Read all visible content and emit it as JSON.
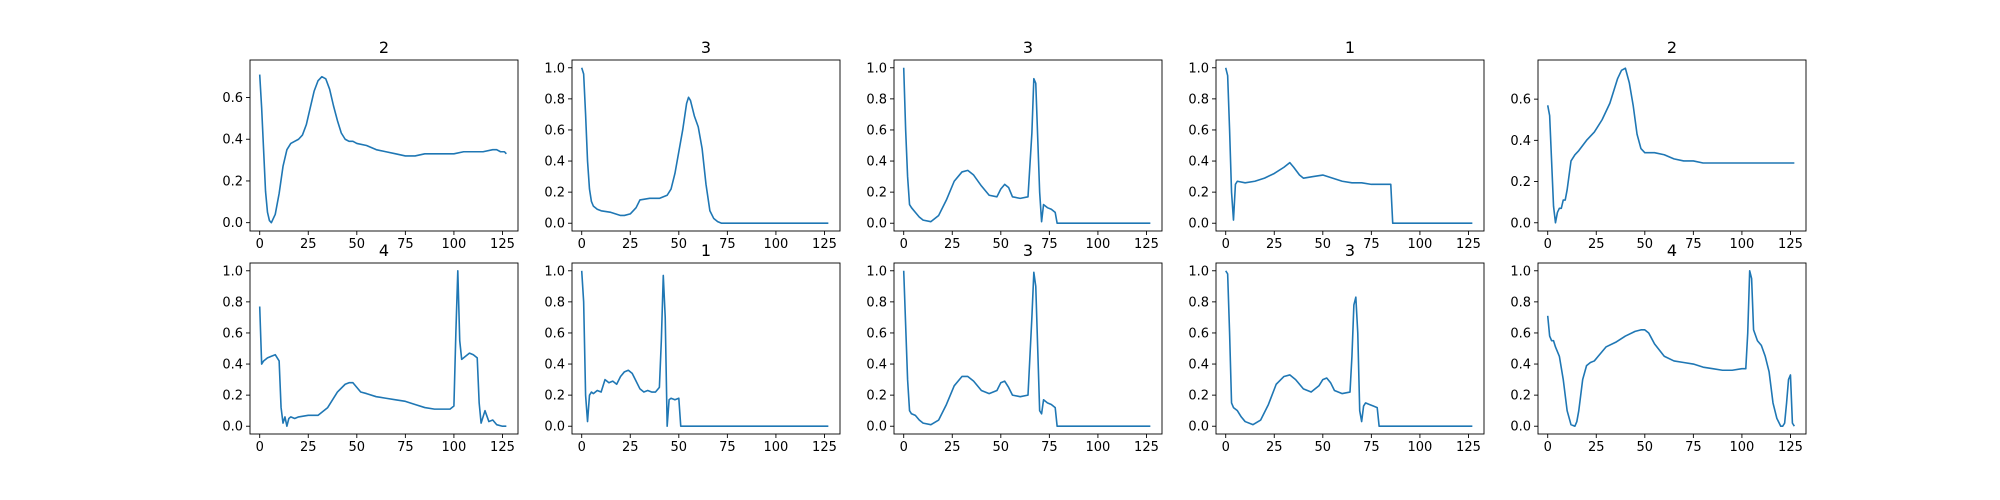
{
  "figure": {
    "background": "#ffffff",
    "line_color": "#1f77b4",
    "axis_color": "#000000"
  },
  "chart_data": [
    {
      "type": "line",
      "title": "2",
      "xlim": [
        -5,
        133
      ],
      "ylim": [
        -0.04,
        0.78
      ],
      "xticks": [
        0,
        25,
        50,
        75,
        100,
        125
      ],
      "yticks": [
        0.0,
        0.2,
        0.4,
        0.6
      ],
      "series": [
        {
          "x": [
            0,
            1,
            2,
            3,
            4,
            5,
            6,
            8,
            10,
            12,
            14,
            16,
            18,
            20,
            22,
            24,
            26,
            28,
            30,
            32,
            34,
            36,
            38,
            40,
            42,
            44,
            46,
            48,
            50,
            55,
            60,
            65,
            70,
            75,
            80,
            85,
            90,
            95,
            100,
            105,
            110,
            115,
            120,
            122,
            124,
            126,
            127
          ],
          "y": [
            0.71,
            0.55,
            0.35,
            0.15,
            0.05,
            0.01,
            0.0,
            0.04,
            0.14,
            0.27,
            0.35,
            0.38,
            0.39,
            0.4,
            0.42,
            0.47,
            0.55,
            0.63,
            0.68,
            0.7,
            0.69,
            0.64,
            0.56,
            0.49,
            0.43,
            0.4,
            0.39,
            0.39,
            0.38,
            0.37,
            0.35,
            0.34,
            0.33,
            0.32,
            0.32,
            0.33,
            0.33,
            0.33,
            0.33,
            0.34,
            0.34,
            0.34,
            0.35,
            0.35,
            0.34,
            0.34,
            0.33
          ]
        }
      ]
    },
    {
      "type": "line",
      "title": "3",
      "xlim": [
        -5,
        133
      ],
      "ylim": [
        -0.05,
        1.05
      ],
      "xticks": [
        0,
        25,
        50,
        75,
        100,
        125
      ],
      "yticks": [
        0.0,
        0.2,
        0.4,
        0.6,
        0.8,
        1.0
      ],
      "series": [
        {
          "x": [
            0,
            1,
            2,
            3,
            4,
            5,
            6,
            8,
            10,
            15,
            20,
            22,
            25,
            28,
            30,
            35,
            40,
            44,
            46,
            48,
            50,
            52,
            54,
            55,
            56,
            58,
            60,
            62,
            64,
            66,
            68,
            70,
            72,
            75,
            80,
            90,
            100,
            110,
            120,
            127
          ],
          "y": [
            1.0,
            0.96,
            0.7,
            0.4,
            0.22,
            0.14,
            0.11,
            0.09,
            0.08,
            0.07,
            0.05,
            0.05,
            0.06,
            0.1,
            0.15,
            0.16,
            0.16,
            0.18,
            0.22,
            0.32,
            0.46,
            0.6,
            0.77,
            0.81,
            0.79,
            0.69,
            0.62,
            0.48,
            0.25,
            0.08,
            0.03,
            0.01,
            0.0,
            0.0,
            0.0,
            0.0,
            0.0,
            0.0,
            0.0,
            0.0
          ]
        }
      ]
    },
    {
      "type": "line",
      "title": "3",
      "xlim": [
        -5,
        133
      ],
      "ylim": [
        -0.05,
        1.05
      ],
      "xticks": [
        0,
        25,
        50,
        75,
        100,
        125
      ],
      "yticks": [
        0.0,
        0.2,
        0.4,
        0.6,
        0.8,
        1.0
      ],
      "series": [
        {
          "x": [
            0,
            1,
            2,
            3,
            4,
            6,
            8,
            10,
            14,
            18,
            22,
            26,
            30,
            33,
            36,
            40,
            44,
            48,
            50,
            52,
            54,
            56,
            60,
            64,
            66,
            67,
            68,
            69,
            70,
            71,
            72,
            74,
            76,
            78,
            79,
            80,
            90,
            100,
            110,
            120,
            127
          ],
          "y": [
            1.0,
            0.6,
            0.3,
            0.12,
            0.1,
            0.07,
            0.04,
            0.02,
            0.01,
            0.05,
            0.15,
            0.27,
            0.33,
            0.34,
            0.31,
            0.24,
            0.18,
            0.17,
            0.22,
            0.25,
            0.23,
            0.17,
            0.16,
            0.17,
            0.58,
            0.93,
            0.9,
            0.55,
            0.2,
            0.01,
            0.12,
            0.1,
            0.09,
            0.07,
            0.0,
            0.0,
            0.0,
            0.0,
            0.0,
            0.0,
            0.0
          ]
        }
      ]
    },
    {
      "type": "line",
      "title": "1",
      "xlim": [
        -5,
        133
      ],
      "ylim": [
        -0.05,
        1.05
      ],
      "xticks": [
        0,
        25,
        50,
        75,
        100,
        125
      ],
      "yticks": [
        0.0,
        0.2,
        0.4,
        0.6,
        0.8,
        1.0
      ],
      "series": [
        {
          "x": [
            0,
            1,
            2,
            3,
            4,
            5,
            6,
            10,
            15,
            20,
            25,
            30,
            33,
            35,
            38,
            40,
            45,
            50,
            55,
            60,
            65,
            70,
            75,
            80,
            85,
            86,
            90,
            100,
            110,
            120,
            127
          ],
          "y": [
            1.0,
            0.95,
            0.6,
            0.2,
            0.02,
            0.25,
            0.27,
            0.26,
            0.27,
            0.29,
            0.32,
            0.36,
            0.39,
            0.36,
            0.31,
            0.29,
            0.3,
            0.31,
            0.29,
            0.27,
            0.26,
            0.26,
            0.25,
            0.25,
            0.25,
            0.0,
            0.0,
            0.0,
            0.0,
            0.0,
            0.0
          ]
        }
      ]
    },
    {
      "type": "line",
      "title": "2",
      "xlim": [
        -5,
        133
      ],
      "ylim": [
        -0.04,
        0.79
      ],
      "xticks": [
        0,
        25,
        50,
        75,
        100,
        125
      ],
      "yticks": [
        0.0,
        0.2,
        0.4,
        0.6
      ],
      "series": [
        {
          "x": [
            0,
            1,
            2,
            3,
            4,
            5,
            6,
            7,
            8,
            9,
            10,
            12,
            14,
            16,
            20,
            24,
            28,
            32,
            34,
            36,
            38,
            40,
            42,
            44,
            46,
            48,
            50,
            55,
            60,
            65,
            70,
            75,
            80,
            85,
            90,
            95,
            100,
            105,
            110,
            115,
            120,
            125,
            127
          ],
          "y": [
            0.57,
            0.52,
            0.3,
            0.08,
            0.0,
            0.05,
            0.07,
            0.07,
            0.11,
            0.11,
            0.16,
            0.3,
            0.33,
            0.35,
            0.4,
            0.44,
            0.5,
            0.58,
            0.64,
            0.7,
            0.74,
            0.75,
            0.68,
            0.57,
            0.43,
            0.36,
            0.34,
            0.34,
            0.33,
            0.31,
            0.3,
            0.3,
            0.29,
            0.29,
            0.29,
            0.29,
            0.29,
            0.29,
            0.29,
            0.29,
            0.29,
            0.29,
            0.29
          ]
        }
      ]
    },
    {
      "type": "line",
      "title": "4",
      "xlim": [
        -5,
        133
      ],
      "ylim": [
        -0.05,
        1.05
      ],
      "xticks": [
        0,
        25,
        50,
        75,
        100,
        125
      ],
      "yticks": [
        0.0,
        0.2,
        0.4,
        0.6,
        0.8,
        1.0
      ],
      "series": [
        {
          "x": [
            0,
            1,
            2,
            4,
            6,
            8,
            10,
            11,
            12,
            13,
            14,
            15,
            16,
            18,
            20,
            25,
            30,
            35,
            40,
            44,
            46,
            48,
            50,
            52,
            55,
            60,
            65,
            70,
            75,
            80,
            85,
            90,
            95,
            98,
            100,
            101,
            102,
            103,
            104,
            106,
            108,
            110,
            112,
            113,
            114,
            116,
            118,
            120,
            122,
            125,
            127
          ],
          "y": [
            0.77,
            0.4,
            0.42,
            0.44,
            0.45,
            0.46,
            0.42,
            0.12,
            0.02,
            0.06,
            0.0,
            0.05,
            0.06,
            0.05,
            0.06,
            0.07,
            0.07,
            0.12,
            0.22,
            0.27,
            0.28,
            0.28,
            0.25,
            0.22,
            0.21,
            0.19,
            0.18,
            0.17,
            0.16,
            0.14,
            0.12,
            0.11,
            0.11,
            0.11,
            0.13,
            0.6,
            1.0,
            0.55,
            0.43,
            0.45,
            0.47,
            0.46,
            0.44,
            0.15,
            0.02,
            0.1,
            0.03,
            0.04,
            0.01,
            0.0,
            0.0
          ]
        }
      ]
    },
    {
      "type": "line",
      "title": "1",
      "xlim": [
        -5,
        133
      ],
      "ylim": [
        -0.05,
        1.05
      ],
      "xticks": [
        0,
        25,
        50,
        75,
        100,
        125
      ],
      "yticks": [
        0.0,
        0.2,
        0.4,
        0.6,
        0.8,
        1.0
      ],
      "series": [
        {
          "x": [
            0,
            1,
            2,
            3,
            4,
            5,
            6,
            8,
            10,
            12,
            14,
            16,
            18,
            20,
            22,
            24,
            26,
            28,
            30,
            32,
            34,
            36,
            38,
            40,
            41,
            42,
            43,
            44,
            45,
            46,
            48,
            50,
            51,
            52,
            55,
            60,
            70,
            80,
            90,
            100,
            110,
            120,
            127
          ],
          "y": [
            1.0,
            0.8,
            0.2,
            0.03,
            0.2,
            0.22,
            0.21,
            0.23,
            0.22,
            0.3,
            0.28,
            0.29,
            0.27,
            0.32,
            0.35,
            0.36,
            0.34,
            0.29,
            0.24,
            0.22,
            0.23,
            0.22,
            0.22,
            0.25,
            0.55,
            0.97,
            0.7,
            0.0,
            0.17,
            0.18,
            0.17,
            0.18,
            0.0,
            0.0,
            0.0,
            0.0,
            0.0,
            0.0,
            0.0,
            0.0,
            0.0,
            0.0,
            0.0
          ]
        }
      ]
    },
    {
      "type": "line",
      "title": "3",
      "xlim": [
        -5,
        133
      ],
      "ylim": [
        -0.05,
        1.05
      ],
      "xticks": [
        0,
        25,
        50,
        75,
        100,
        125
      ],
      "yticks": [
        0.0,
        0.2,
        0.4,
        0.6,
        0.8,
        1.0
      ],
      "series": [
        {
          "x": [
            0,
            1,
            2,
            3,
            4,
            6,
            8,
            10,
            14,
            18,
            22,
            26,
            30,
            33,
            36,
            40,
            44,
            48,
            50,
            52,
            54,
            56,
            60,
            64,
            66,
            67,
            68,
            69,
            70,
            71,
            72,
            74,
            76,
            78,
            79,
            80,
            90,
            100,
            110,
            120,
            127
          ],
          "y": [
            1.0,
            0.65,
            0.3,
            0.1,
            0.08,
            0.07,
            0.04,
            0.02,
            0.01,
            0.04,
            0.14,
            0.26,
            0.32,
            0.32,
            0.29,
            0.23,
            0.21,
            0.23,
            0.28,
            0.29,
            0.25,
            0.2,
            0.19,
            0.2,
            0.7,
            0.99,
            0.9,
            0.5,
            0.1,
            0.08,
            0.17,
            0.15,
            0.14,
            0.12,
            0.0,
            0.0,
            0.0,
            0.0,
            0.0,
            0.0,
            0.0
          ]
        }
      ]
    },
    {
      "type": "line",
      "title": "3",
      "xlim": [
        -5,
        133
      ],
      "ylim": [
        -0.05,
        1.05
      ],
      "xticks": [
        0,
        25,
        50,
        75,
        100,
        125
      ],
      "yticks": [
        0.0,
        0.2,
        0.4,
        0.6,
        0.8,
        1.0
      ],
      "series": [
        {
          "x": [
            0,
            1,
            2,
            3,
            4,
            6,
            8,
            10,
            14,
            18,
            22,
            26,
            30,
            33,
            36,
            40,
            44,
            48,
            50,
            52,
            54,
            56,
            60,
            64,
            65,
            66,
            67,
            68,
            69,
            70,
            71,
            72,
            74,
            76,
            78,
            79,
            80,
            90,
            100,
            110,
            120,
            127
          ],
          "y": [
            1.0,
            0.98,
            0.6,
            0.15,
            0.12,
            0.1,
            0.06,
            0.03,
            0.01,
            0.04,
            0.14,
            0.27,
            0.32,
            0.33,
            0.3,
            0.24,
            0.22,
            0.26,
            0.3,
            0.31,
            0.28,
            0.23,
            0.21,
            0.22,
            0.45,
            0.78,
            0.83,
            0.6,
            0.1,
            0.03,
            0.13,
            0.15,
            0.14,
            0.13,
            0.12,
            0.0,
            0.0,
            0.0,
            0.0,
            0.0,
            0.0,
            0.0
          ]
        }
      ]
    },
    {
      "type": "line",
      "title": "4",
      "xlim": [
        -5,
        133
      ],
      "ylim": [
        -0.05,
        1.05
      ],
      "xticks": [
        0,
        25,
        50,
        75,
        100,
        125
      ],
      "yticks": [
        0.0,
        0.2,
        0.4,
        0.6,
        0.8,
        1.0
      ],
      "series": [
        {
          "x": [
            0,
            1,
            2,
            3,
            4,
            6,
            8,
            10,
            12,
            14,
            15,
            16,
            18,
            20,
            22,
            24,
            26,
            28,
            30,
            35,
            40,
            45,
            48,
            50,
            52,
            55,
            60,
            65,
            70,
            75,
            80,
            85,
            90,
            95,
            100,
            102,
            103,
            104,
            105,
            106,
            108,
            110,
            112,
            114,
            116,
            118,
            120,
            121,
            122,
            123,
            124,
            125,
            126,
            127
          ],
          "y": [
            0.71,
            0.58,
            0.55,
            0.55,
            0.51,
            0.45,
            0.3,
            0.1,
            0.01,
            0.0,
            0.03,
            0.1,
            0.3,
            0.39,
            0.41,
            0.42,
            0.45,
            0.48,
            0.51,
            0.54,
            0.58,
            0.61,
            0.62,
            0.62,
            0.6,
            0.53,
            0.45,
            0.42,
            0.41,
            0.4,
            0.38,
            0.37,
            0.36,
            0.36,
            0.37,
            0.37,
            0.6,
            1.0,
            0.95,
            0.62,
            0.55,
            0.52,
            0.45,
            0.35,
            0.15,
            0.05,
            0.0,
            0.0,
            0.02,
            0.15,
            0.3,
            0.33,
            0.02,
            0.0
          ]
        }
      ]
    }
  ]
}
